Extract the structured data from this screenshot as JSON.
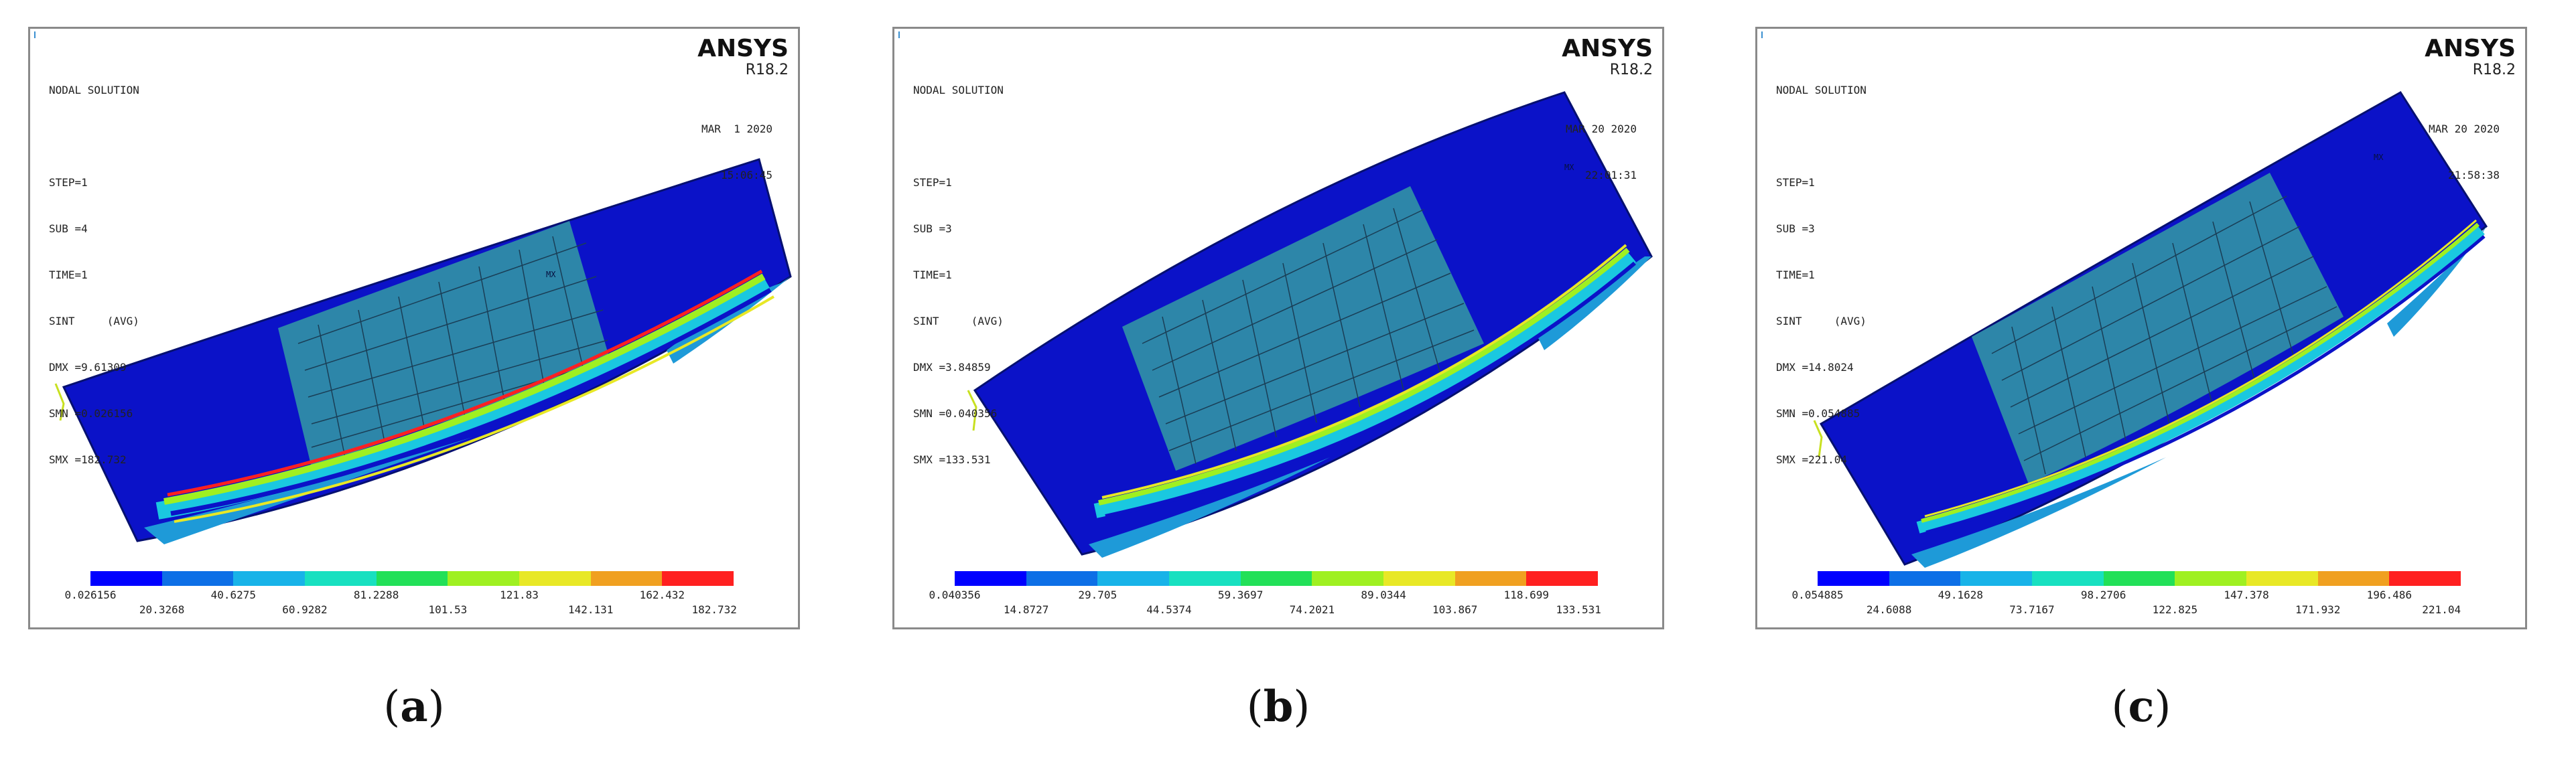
{
  "colors": [
    "#0000ff",
    "#0d6fe6",
    "#18b3e8",
    "#18e0c0",
    "#22e058",
    "#9ff021",
    "#e8e826",
    "#f0a020",
    "#ff2020"
  ],
  "panels": [
    {
      "caption": "a",
      "brand": "ANSYS",
      "version": "R18.2",
      "date": "MAR  1 2020",
      "time": "15:06:45",
      "info": [
        "NODAL SOLUTION",
        "",
        "STEP=1",
        "SUB =4",
        "TIME=1",
        "SINT     (AVG)",
        "DMX =9.61309",
        "SMN =0.026156",
        "SMX =182.732"
      ],
      "labels_top": [
        "0.026156",
        "40.6275",
        "81.2288",
        "121.83",
        "162.432"
      ],
      "labels_bottom": [
        "20.3268",
        "60.9282",
        "101.53",
        "142.131",
        "182.732"
      ],
      "mark": "MX"
    },
    {
      "caption": "b",
      "brand": "ANSYS",
      "version": "R18.2",
      "date": "MAR 20 2020",
      "time": "22:01:31",
      "info": [
        "NODAL SOLUTION",
        "",
        "STEP=1",
        "SUB =3",
        "TIME=1",
        "SINT     (AVG)",
        "DMX =3.84859",
        "SMN =0.040356",
        "SMX =133.531"
      ],
      "labels_top": [
        "0.040356",
        "29.705",
        "59.3697",
        "89.0344",
        "118.699"
      ],
      "labels_bottom": [
        "14.8727",
        "44.5374",
        "74.2021",
        "103.867",
        "133.531"
      ],
      "mark": "MX"
    },
    {
      "caption": "c",
      "brand": "ANSYS",
      "version": "R18.2",
      "date": "MAR 20 2020",
      "time": "21:58:38",
      "info": [
        "NODAL SOLUTION",
        "",
        "STEP=1",
        "SUB =3",
        "TIME=1",
        "SINT     (AVG)",
        "DMX =14.8024",
        "SMN =0.054885",
        "SMX =221.04"
      ],
      "labels_top": [
        "0.054885",
        "49.1628",
        "98.2706",
        "147.378",
        "196.486"
      ],
      "labels_bottom": [
        "24.6088",
        "73.7167",
        "122.825",
        "171.932",
        "221.04"
      ],
      "mark": "MX"
    }
  ]
}
